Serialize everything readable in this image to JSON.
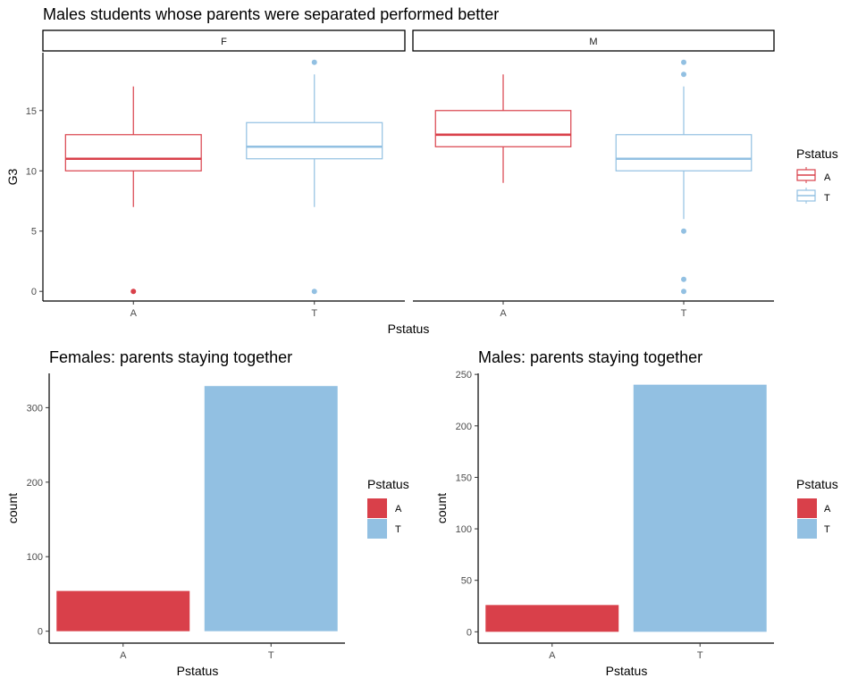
{
  "colors": {
    "A": "#d9404a",
    "T": "#92c0e2",
    "axis": "#000000",
    "tick_text": "#4d4d4d"
  },
  "chart_data": [
    {
      "type": "boxplot",
      "title": "Males students whose parents were separated performed better",
      "xlabel": "Pstatus",
      "ylabel": "G3",
      "ylim": [
        -0.8,
        19.8
      ],
      "yticks": [
        0,
        5,
        10,
        15
      ],
      "facets": [
        {
          "label": "F",
          "categories": [
            "A",
            "T"
          ],
          "boxes": [
            {
              "category": "A",
              "min": 7,
              "q1": 10,
              "median": 11,
              "q3": 13,
              "max": 17,
              "outliers": [
                0
              ]
            },
            {
              "category": "T",
              "min": 7,
              "q1": 11,
              "median": 12,
              "q3": 14,
              "max": 18,
              "outliers": [
                19,
                0
              ]
            }
          ]
        },
        {
          "label": "M",
          "categories": [
            "A",
            "T"
          ],
          "boxes": [
            {
              "category": "A",
              "min": 9,
              "q1": 12,
              "median": 13,
              "q3": 15,
              "max": 18,
              "outliers": []
            },
            {
              "category": "T",
              "min": 6,
              "q1": 10,
              "median": 11,
              "q3": 13,
              "max": 17,
              "outliers": [
                19,
                18,
                5,
                1,
                0
              ]
            }
          ]
        }
      ],
      "legend": {
        "title": "Pstatus",
        "items": [
          "A",
          "T"
        ],
        "position": "right"
      }
    },
    {
      "type": "bar",
      "title": "Females: parents staying together",
      "xlabel": "Pstatus",
      "ylabel": "count",
      "categories": [
        "A",
        "T"
      ],
      "values": [
        54,
        329
      ],
      "ylim": [
        -16,
        346
      ],
      "yticks": [
        0,
        100,
        200,
        300
      ],
      "legend": {
        "title": "Pstatus",
        "items": [
          "A",
          "T"
        ],
        "position": "right"
      }
    },
    {
      "type": "bar",
      "title": "Males: parents staying together",
      "xlabel": "Pstatus",
      "ylabel": "count",
      "categories": [
        "A",
        "T"
      ],
      "values": [
        26,
        240
      ],
      "ylim": [
        -11,
        251
      ],
      "yticks": [
        0,
        50,
        100,
        150,
        200,
        250
      ],
      "legend": {
        "title": "Pstatus",
        "items": [
          "A",
          "T"
        ],
        "position": "right"
      }
    }
  ]
}
